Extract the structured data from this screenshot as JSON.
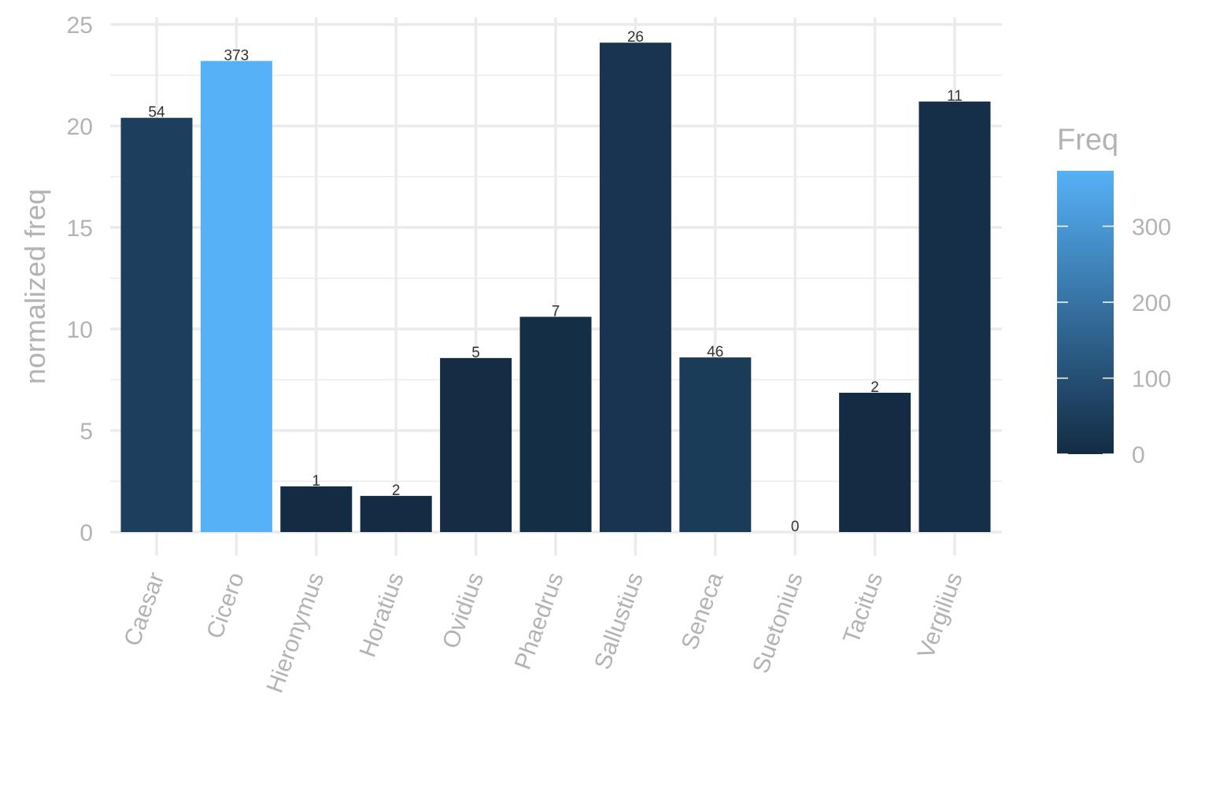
{
  "chart_data": {
    "type": "bar",
    "title": "",
    "xlabel": "",
    "ylabel": "normalized freq",
    "ylim": [
      0,
      25
    ],
    "yticks": [
      0,
      5,
      10,
      15,
      20,
      25
    ],
    "grid": true,
    "categories": [
      "Caesar",
      "Cicero",
      "Hieronymus",
      "Horatius",
      "Ovidius",
      "Phaedrus",
      "Sallustius",
      "Seneca",
      "Suetonius",
      "Tacitus",
      "Vergilius"
    ],
    "values": [
      20.4,
      23.2,
      2.25,
      1.78,
      8.57,
      10.6,
      24.1,
      8.6,
      0,
      6.86,
      21.2
    ],
    "data_labels": [
      "54",
      "373",
      "1",
      "2",
      "5",
      "7",
      "26",
      "46",
      "0",
      "2",
      "11"
    ],
    "fill_values": [
      54,
      373,
      1,
      2,
      5,
      7,
      26,
      46,
      0,
      2,
      11
    ],
    "legend": {
      "title": "Freq",
      "type": "colorbar",
      "position": "right",
      "range": [
        0,
        373
      ],
      "ticks": [
        0,
        100,
        200,
        300
      ],
      "low_color": "#132B43",
      "high_color": "#56B1F7"
    },
    "colors": {
      "grid": "#ebebeb",
      "axis_text": "#b3b3b3",
      "label_text": "#333333"
    }
  }
}
